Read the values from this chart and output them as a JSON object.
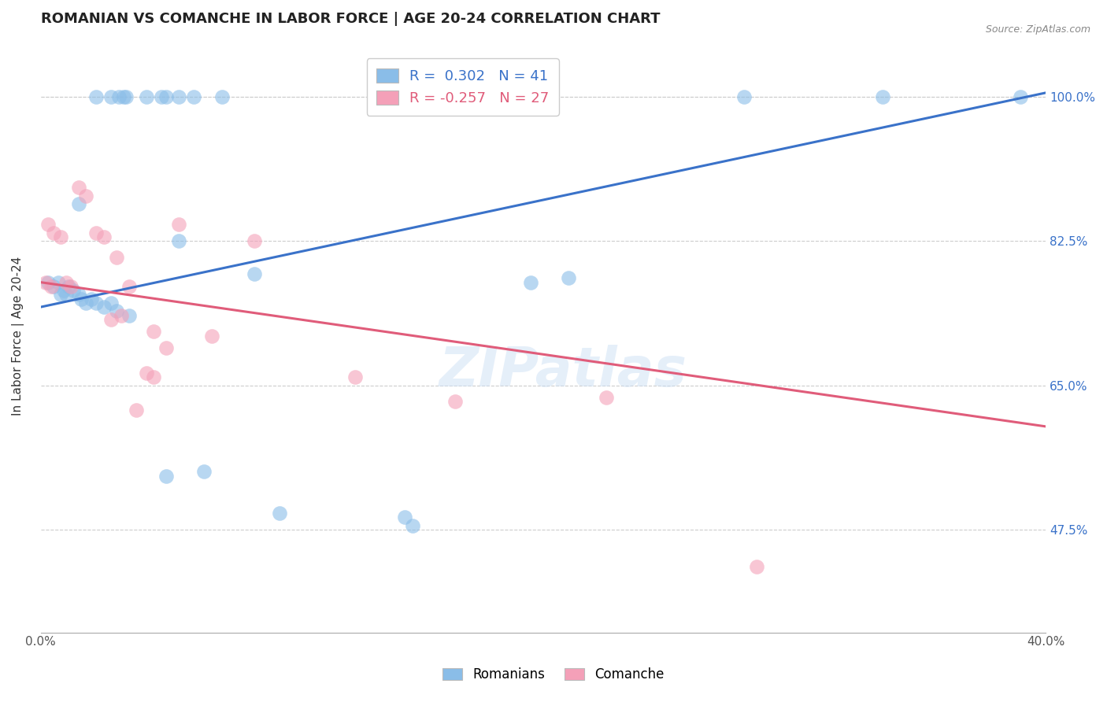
{
  "title": "ROMANIAN VS COMANCHE IN LABOR FORCE | AGE 20-24 CORRELATION CHART",
  "source": "Source: ZipAtlas.com",
  "ylabel": "In Labor Force | Age 20-24",
  "xlim": [
    0.0,
    40.0
  ],
  "ylim": [
    35.0,
    107.0
  ],
  "yticks": [
    47.5,
    65.0,
    82.5,
    100.0
  ],
  "yticklabels": [
    "47.5%",
    "65.0%",
    "82.5%",
    "100.0%"
  ],
  "blue_R": 0.302,
  "blue_N": 41,
  "pink_R": -0.257,
  "pink_N": 27,
  "blue_color": "#8abde8",
  "pink_color": "#f4a0b8",
  "blue_line_color": "#3a72c9",
  "pink_line_color": "#e05c7a",
  "legend_blue_label": "Romanians",
  "legend_pink_label": "Comanche",
  "watermark": "ZIPatlas",
  "blue_points": [
    [
      2.2,
      100.0
    ],
    [
      2.8,
      100.0
    ],
    [
      3.1,
      100.0
    ],
    [
      3.3,
      100.0
    ],
    [
      3.4,
      100.0
    ],
    [
      4.2,
      100.0
    ],
    [
      4.8,
      100.0
    ],
    [
      5.0,
      100.0
    ],
    [
      5.5,
      100.0
    ],
    [
      6.1,
      100.0
    ],
    [
      7.2,
      100.0
    ],
    [
      1.5,
      87.0
    ],
    [
      0.3,
      77.5
    ],
    [
      0.5,
      77.0
    ],
    [
      0.7,
      77.5
    ],
    [
      0.8,
      76.0
    ],
    [
      0.9,
      76.5
    ],
    [
      1.0,
      76.0
    ],
    [
      1.1,
      77.0
    ],
    [
      1.3,
      76.5
    ],
    [
      1.5,
      76.0
    ],
    [
      1.6,
      75.5
    ],
    [
      1.8,
      75.0
    ],
    [
      2.0,
      75.5
    ],
    [
      2.2,
      75.0
    ],
    [
      2.5,
      74.5
    ],
    [
      2.8,
      75.0
    ],
    [
      3.0,
      74.0
    ],
    [
      3.5,
      73.5
    ],
    [
      5.5,
      82.5
    ],
    [
      8.5,
      78.5
    ],
    [
      21.0,
      78.0
    ],
    [
      5.0,
      54.0
    ],
    [
      6.5,
      54.5
    ],
    [
      9.5,
      49.5
    ],
    [
      14.5,
      49.0
    ],
    [
      14.8,
      48.0
    ],
    [
      28.0,
      100.0
    ],
    [
      33.5,
      100.0
    ],
    [
      39.0,
      100.0
    ],
    [
      19.5,
      77.5
    ]
  ],
  "pink_points": [
    [
      1.5,
      89.0
    ],
    [
      1.8,
      88.0
    ],
    [
      0.3,
      84.5
    ],
    [
      0.5,
      83.5
    ],
    [
      0.8,
      83.0
    ],
    [
      2.2,
      83.5
    ],
    [
      2.5,
      83.0
    ],
    [
      1.0,
      77.5
    ],
    [
      1.2,
      77.0
    ],
    [
      3.0,
      80.5
    ],
    [
      0.2,
      77.5
    ],
    [
      0.4,
      77.0
    ],
    [
      3.5,
      77.0
    ],
    [
      5.5,
      84.5
    ],
    [
      8.5,
      82.5
    ],
    [
      2.8,
      73.0
    ],
    [
      3.2,
      73.5
    ],
    [
      4.5,
      71.5
    ],
    [
      5.0,
      69.5
    ],
    [
      6.8,
      71.0
    ],
    [
      4.2,
      66.5
    ],
    [
      4.5,
      66.0
    ],
    [
      3.8,
      62.0
    ],
    [
      12.5,
      66.0
    ],
    [
      16.5,
      63.0
    ],
    [
      22.5,
      63.5
    ],
    [
      28.5,
      43.0
    ]
  ],
  "blue_line": [
    [
      0.0,
      74.5
    ],
    [
      40.0,
      100.5
    ]
  ],
  "pink_line": [
    [
      0.0,
      77.5
    ],
    [
      40.0,
      60.0
    ]
  ]
}
